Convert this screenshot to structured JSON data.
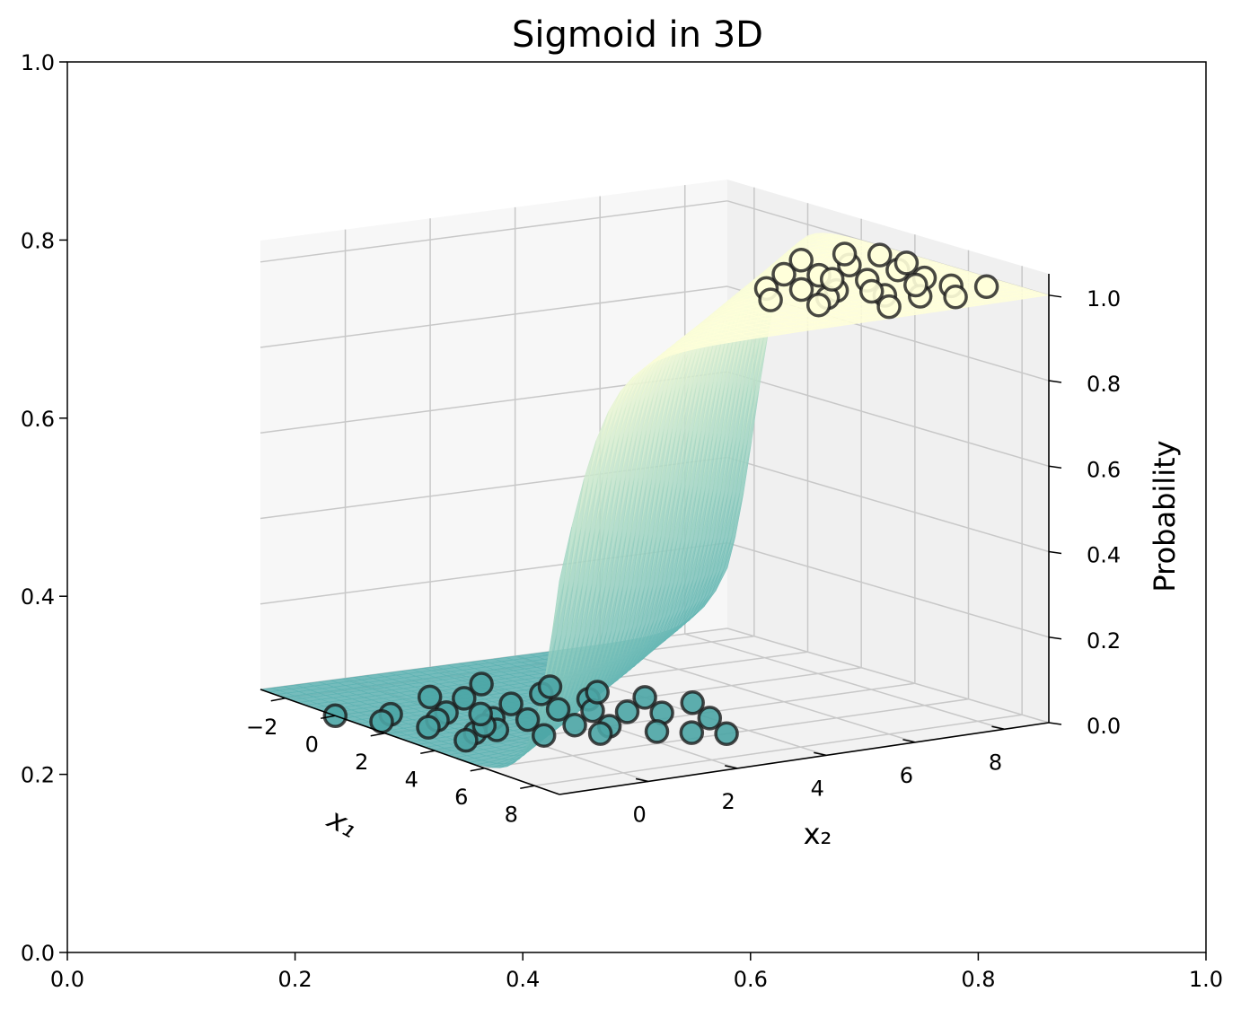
{
  "chart_data": {
    "type": "scatter",
    "title": "Sigmoid in 3D",
    "outer_axes": {
      "xlim": [
        0.0,
        1.0
      ],
      "ylim": [
        0.0,
        1.0
      ],
      "x_ticks": [
        "0.0",
        "0.2",
        "0.4",
        "0.6",
        "0.8",
        "1.0"
      ],
      "y_ticks": [
        "0.0",
        "0.2",
        "0.4",
        "0.6",
        "0.8",
        "1.0"
      ]
    },
    "axes3d": {
      "xlabel": "x₁",
      "ylabel": "x₂",
      "zlabel": "Probability",
      "x_ticks": [
        "−2",
        "0",
        "2",
        "4",
        "6",
        "8"
      ],
      "y_ticks": [
        "0",
        "2",
        "4",
        "6",
        "8"
      ],
      "z_ticks": [
        "0.0",
        "0.2",
        "0.4",
        "0.6",
        "0.8",
        "1.0"
      ],
      "xlim": [
        -3,
        9
      ],
      "ylim": [
        -2,
        9
      ],
      "zlim": [
        0,
        1.05
      ],
      "grid": true
    },
    "surface": {
      "function": "sigmoid",
      "colormap_low": "#5fb3b3",
      "colormap_high": "#ffffd9"
    },
    "series": [
      {
        "label_value": 0,
        "color": "#4ba5a5",
        "points": [
          [
            0,
            -2,
            0
          ],
          [
            0.5,
            -1,
            0
          ],
          [
            1,
            0,
            0
          ],
          [
            1.5,
            -0.5,
            0
          ],
          [
            2,
            0.5,
            0
          ],
          [
            2.5,
            1,
            0
          ],
          [
            3,
            0,
            0
          ],
          [
            1,
            1.5,
            0
          ],
          [
            2,
            2,
            0
          ],
          [
            3.5,
            1.5,
            0
          ],
          [
            0.5,
            2.5,
            0
          ],
          [
            1.5,
            3,
            0
          ],
          [
            2.5,
            2.5,
            0
          ],
          [
            3,
            3,
            0
          ],
          [
            4,
            2,
            0
          ],
          [
            0,
            1,
            0
          ],
          [
            -0.5,
            0.5,
            0
          ],
          [
            1,
            -1.5,
            0
          ],
          [
            2,
            -1,
            0
          ],
          [
            3,
            -0.5,
            0
          ],
          [
            4,
            0.5,
            0
          ],
          [
            4.5,
            1.5,
            0
          ],
          [
            3.5,
            3.5,
            0
          ],
          [
            2,
            4,
            0
          ],
          [
            1,
            3.5,
            0
          ],
          [
            5,
            2.5,
            0
          ],
          [
            5.5,
            3,
            0
          ],
          [
            4.5,
            4,
            0
          ],
          [
            3,
            4.5,
            0
          ],
          [
            6,
            3.5,
            0
          ],
          [
            2.5,
            0,
            0
          ],
          [
            0,
            3,
            0
          ],
          [
            -1,
            2,
            0
          ],
          [
            1.5,
            0.5,
            0
          ],
          [
            3.5,
            -1,
            0
          ]
        ]
      },
      {
        "label_value": 1,
        "color": "#ffffd9",
        "points": [
          [
            5,
            5,
            1
          ],
          [
            6,
            6,
            1
          ],
          [
            5.5,
            7,
            1
          ],
          [
            6.5,
            5.5,
            1
          ],
          [
            7,
            6.5,
            1
          ],
          [
            4.5,
            6.5,
            1
          ],
          [
            5,
            8,
            1
          ],
          [
            6,
            8,
            1
          ],
          [
            7,
            8,
            1
          ],
          [
            7.5,
            7,
            1
          ],
          [
            4,
            7.5,
            1
          ],
          [
            3.5,
            8.5,
            1
          ],
          [
            5.5,
            5.5,
            1
          ],
          [
            6.5,
            7.5,
            1
          ],
          [
            8,
            6,
            1
          ],
          [
            4,
            6,
            1
          ],
          [
            3,
            7,
            1
          ],
          [
            6,
            4.5,
            1
          ],
          [
            7,
            5,
            1
          ],
          [
            8,
            7.5,
            1
          ],
          [
            5,
            6.5,
            1
          ],
          [
            6.5,
            6.5,
            1
          ],
          [
            4.5,
            8.5,
            1
          ],
          [
            3,
            8,
            1
          ],
          [
            7.5,
            8.5,
            1
          ]
        ]
      }
    ]
  }
}
